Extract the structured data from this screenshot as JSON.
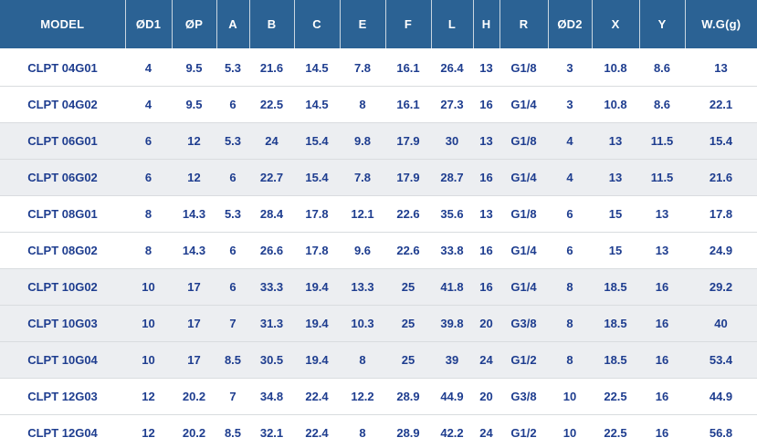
{
  "colors": {
    "header_bg": "#2b6294",
    "header_text": "#ffffff",
    "body_text": "#1e3d8f",
    "band_gray": "#eceef1",
    "band_white": "#ffffff",
    "row_divider": "#d9dcdf"
  },
  "chart_data": {
    "type": "table",
    "title": "",
    "columns": [
      "MODEL",
      "ØD1",
      "ØP",
      "A",
      "B",
      "C",
      "E",
      "F",
      "L",
      "H",
      "R",
      "ØD2",
      "X",
      "Y",
      "W.G(g)"
    ],
    "rows": [
      {
        "band": "white",
        "cells": [
          "CLPT 04G01",
          "4",
          "9.5",
          "5.3",
          "21.6",
          "14.5",
          "7.8",
          "16.1",
          "26.4",
          "13",
          "G1/8",
          "3",
          "10.8",
          "8.6",
          "13"
        ]
      },
      {
        "band": "white",
        "cells": [
          "CLPT 04G02",
          "4",
          "9.5",
          "6",
          "22.5",
          "14.5",
          "8",
          "16.1",
          "27.3",
          "16",
          "G1/4",
          "3",
          "10.8",
          "8.6",
          "22.1"
        ]
      },
      {
        "band": "gray",
        "cells": [
          "CLPT 06G01",
          "6",
          "12",
          "5.3",
          "24",
          "15.4",
          "9.8",
          "17.9",
          "30",
          "13",
          "G1/8",
          "4",
          "13",
          "11.5",
          "15.4"
        ]
      },
      {
        "band": "gray",
        "cells": [
          "CLPT 06G02",
          "6",
          "12",
          "6",
          "22.7",
          "15.4",
          "7.8",
          "17.9",
          "28.7",
          "16",
          "G1/4",
          "4",
          "13",
          "11.5",
          "21.6"
        ]
      },
      {
        "band": "white",
        "cells": [
          "CLPT 08G01",
          "8",
          "14.3",
          "5.3",
          "28.4",
          "17.8",
          "12.1",
          "22.6",
          "35.6",
          "13",
          "G1/8",
          "6",
          "15",
          "13",
          "17.8"
        ]
      },
      {
        "band": "white",
        "cells": [
          "CLPT 08G02",
          "8",
          "14.3",
          "6",
          "26.6",
          "17.8",
          "9.6",
          "22.6",
          "33.8",
          "16",
          "G1/4",
          "6",
          "15",
          "13",
          "24.9"
        ]
      },
      {
        "band": "gray",
        "cells": [
          "CLPT 10G02",
          "10",
          "17",
          "6",
          "33.3",
          "19.4",
          "13.3",
          "25",
          "41.8",
          "16",
          "G1/4",
          "8",
          "18.5",
          "16",
          "29.2"
        ]
      },
      {
        "band": "gray",
        "cells": [
          "CLPT 10G03",
          "10",
          "17",
          "7",
          "31.3",
          "19.4",
          "10.3",
          "25",
          "39.8",
          "20",
          "G3/8",
          "8",
          "18.5",
          "16",
          "40"
        ]
      },
      {
        "band": "gray",
        "cells": [
          "CLPT 10G04",
          "10",
          "17",
          "8.5",
          "30.5",
          "19.4",
          "8",
          "25",
          "39",
          "24",
          "G1/2",
          "8",
          "18.5",
          "16",
          "53.4"
        ]
      },
      {
        "band": "white",
        "cells": [
          "CLPT 12G03",
          "12",
          "20.2",
          "7",
          "34.8",
          "22.4",
          "12.2",
          "28.9",
          "44.9",
          "20",
          "G3/8",
          "10",
          "22.5",
          "16",
          "44.9"
        ]
      },
      {
        "band": "white",
        "cells": [
          "CLPT 12G04",
          "12",
          "20.2",
          "8.5",
          "32.1",
          "22.4",
          "8",
          "28.9",
          "42.2",
          "24",
          "G1/2",
          "10",
          "22.5",
          "16",
          "56.8"
        ]
      }
    ]
  }
}
